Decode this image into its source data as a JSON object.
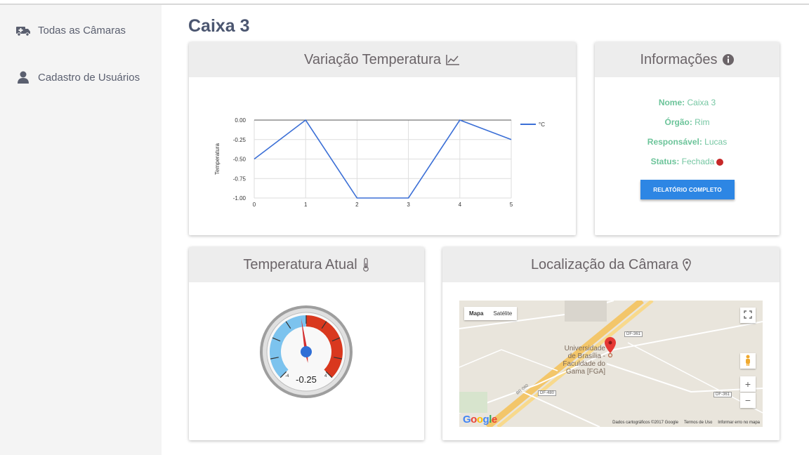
{
  "sidebar": {
    "items": [
      {
        "label": "Todas as Câmaras",
        "icon": "ambulance-icon"
      },
      {
        "label": "Cadastro de Usuários",
        "icon": "user-icon"
      }
    ]
  },
  "page": {
    "title": "Caixa 3"
  },
  "temp_chart": {
    "title": "Variação Temperatura",
    "icon": "line-chart-icon",
    "legend": "°C",
    "ylabel": "Temperatura"
  },
  "chart_data": {
    "type": "line",
    "x": [
      0,
      1,
      2,
      3,
      4,
      5
    ],
    "series": [
      {
        "name": "°C",
        "values": [
          -0.5,
          0,
          -1,
          -1,
          0,
          -0.25
        ]
      }
    ],
    "ylabel": "Temperatura",
    "xlim": [
      0,
      5
    ],
    "ylim": [
      -1,
      0
    ],
    "yticks": [
      "0.00",
      "-0.25",
      "-0.50",
      "-0.75",
      "-1.00"
    ],
    "xticks": [
      "0",
      "1",
      "2",
      "3",
      "4",
      "5"
    ],
    "grid": true,
    "legend": "right",
    "color": "#3b6fd6"
  },
  "info": {
    "title": "Informações",
    "icon": "info-circle-icon",
    "name_label": "Nome:",
    "name_value": "Caixa 3",
    "organ_label": "Órgão:",
    "organ_value": "Rim",
    "responsible_label": "Responsável:",
    "responsible_value": "Lucas",
    "status_label": "Status:",
    "status_value": "Fechada",
    "status_color": "#c62828",
    "report_button": "RELATÓRIO COMPLETO"
  },
  "gauge": {
    "title": "Temperatura Atual",
    "icon": "thermometer-icon",
    "value": "-0.25",
    "value_num": -0.25,
    "min_label": "-4",
    "max_label": "4",
    "cold_color": "#7cc3ee",
    "hot_color": "#d9381e",
    "needle_color": "#d32f2f",
    "hub_color": "#2f6fd6"
  },
  "location": {
    "title": "Localização da Câmara",
    "icon": "map-marker-icon",
    "map_tab_map": "Mapa",
    "map_tab_satellite": "Satélite",
    "place_label": "Universidade\nde Brasília -\nFaculdade do\nGama [FGA]",
    "road_1": "DF-361",
    "road_2": "DF-480",
    "road_3": "DF-361",
    "road_4": "BR-060",
    "zoom_in": "+",
    "zoom_out": "−",
    "footer_data": "Dados cartográficos ©2017 Google",
    "footer_terms": "Termos de Uso",
    "footer_report": "Informar erro no mapa",
    "google": "Google"
  }
}
